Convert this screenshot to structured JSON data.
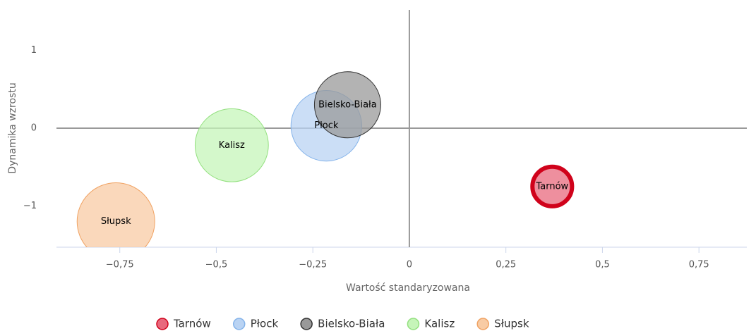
{
  "chart_data": {
    "type": "bubble",
    "x_label": "Wartość standaryzowana",
    "y_label": "Dynamika wzrostu",
    "xlim": [
      -0.914,
      0.874
    ],
    "ylim": [
      -1.53,
      1.52
    ],
    "xticks": [
      {
        "value": -0.75,
        "label": "−0,75"
      },
      {
        "value": -0.5,
        "label": "−0,5"
      },
      {
        "value": -0.25,
        "label": "−0,25"
      },
      0,
      {
        "value": 0.25,
        "label": "0,25"
      },
      {
        "value": 0.5,
        "label": "0,5"
      },
      {
        "value": 0.75,
        "label": "0,75"
      }
    ],
    "yticks": [
      {
        "value": -1,
        "label": "−1"
      },
      0,
      1
    ],
    "series": [
      {
        "name": "Tarnów",
        "color": "#e8697d",
        "stroke": "#d0021b",
        "x": [
          0.37
        ],
        "values": [
          -0.75
        ],
        "sizes": [
          26
        ]
      },
      {
        "name": "Płock",
        "color": "#b9d3f3",
        "stroke": "#84b3ea",
        "x": [
          -0.215
        ],
        "values": [
          0.03
        ],
        "sizes": [
          83
        ]
      },
      {
        "name": "Bielsko-Biała",
        "color": "#999999",
        "stroke": "#333333",
        "x": [
          -0.16
        ],
        "values": [
          0.3
        ],
        "sizes": [
          73
        ]
      },
      {
        "name": "Kalisz",
        "color": "#c6f5b9",
        "stroke": "#93e07f",
        "x": [
          -0.46
        ],
        "values": [
          -0.22
        ],
        "sizes": [
          89
        ]
      },
      {
        "name": "Słupsk",
        "color": "#f8cba4",
        "stroke": "#f0a262",
        "x": [
          -0.76
        ],
        "values": [
          -1.2
        ],
        "sizes": [
          100
        ]
      }
    ]
  }
}
